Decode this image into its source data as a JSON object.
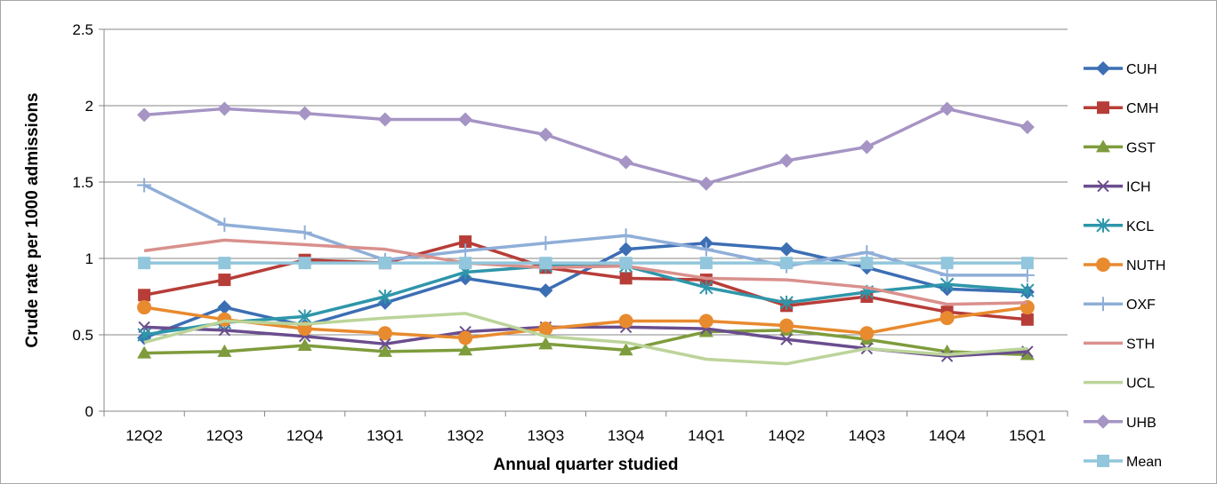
{
  "chart_data": {
    "type": "line",
    "title": "",
    "xlabel": "Annual quarter studied",
    "ylabel": "Crude rate per 1000 admissions",
    "ylim": [
      0,
      2.5
    ],
    "yticks": [
      0,
      0.5,
      1,
      1.5,
      2,
      2.5
    ],
    "ytick_labels": [
      "0",
      "0.5",
      "1",
      "1.5",
      "2",
      "2.5"
    ],
    "grid": "horizontal",
    "legend_position": "right",
    "categories": [
      "12Q2",
      "12Q3",
      "12Q4",
      "13Q1",
      "13Q2",
      "13Q3",
      "13Q4",
      "14Q1",
      "14Q2",
      "14Q3",
      "14Q4",
      "15Q1"
    ],
    "series": [
      {
        "name": "CUH",
        "color": "#3c6eb4",
        "marker": "diamond",
        "values": [
          0.48,
          0.68,
          0.56,
          0.71,
          0.87,
          0.79,
          1.06,
          1.1,
          1.06,
          0.94,
          0.8,
          0.78
        ]
      },
      {
        "name": "CMH",
        "color": "#b73d38",
        "marker": "square",
        "values": [
          0.76,
          0.86,
          0.99,
          0.97,
          1.11,
          0.94,
          0.87,
          0.86,
          0.69,
          0.75,
          0.65,
          0.6
        ]
      },
      {
        "name": "GST",
        "color": "#7e9c3c",
        "marker": "triangle",
        "values": [
          0.38,
          0.39,
          0.43,
          0.39,
          0.4,
          0.44,
          0.4,
          0.52,
          0.53,
          0.47,
          0.39,
          0.37
        ]
      },
      {
        "name": "ICH",
        "color": "#6a4d8e",
        "marker": "x",
        "values": [
          0.55,
          0.53,
          0.49,
          0.44,
          0.52,
          0.55,
          0.55,
          0.54,
          0.47,
          0.41,
          0.36,
          0.39
        ]
      },
      {
        "name": "KCL",
        "color": "#2e96aa",
        "marker": "star",
        "values": [
          0.5,
          0.58,
          0.62,
          0.75,
          0.91,
          0.95,
          0.95,
          0.81,
          0.71,
          0.78,
          0.83,
          0.79
        ]
      },
      {
        "name": "NUTH",
        "color": "#e88a2e",
        "marker": "circle",
        "values": [
          0.68,
          0.6,
          0.54,
          0.51,
          0.48,
          0.54,
          0.59,
          0.59,
          0.56,
          0.51,
          0.61,
          0.68
        ]
      },
      {
        "name": "OXF",
        "color": "#8faed8",
        "marker": "plus",
        "values": [
          1.48,
          1.22,
          1.17,
          0.99,
          1.05,
          1.1,
          1.15,
          1.06,
          0.95,
          1.04,
          0.89,
          0.89
        ]
      },
      {
        "name": "STH",
        "color": "#d9908c",
        "marker": "none",
        "values": [
          1.05,
          1.12,
          1.09,
          1.06,
          0.97,
          0.94,
          0.95,
          0.87,
          0.86,
          0.81,
          0.7,
          0.71
        ]
      },
      {
        "name": "UCL",
        "color": "#bcd49a",
        "marker": "none",
        "values": [
          0.45,
          0.59,
          0.57,
          0.61,
          0.64,
          0.49,
          0.45,
          0.34,
          0.31,
          0.41,
          0.37,
          0.41
        ]
      },
      {
        "name": "UHB",
        "color": "#a594c4",
        "marker": "diamond",
        "values": [
          1.94,
          1.98,
          1.95,
          1.91,
          1.91,
          1.81,
          1.63,
          1.49,
          1.64,
          1.73,
          1.98,
          1.86
        ]
      },
      {
        "name": "Mean",
        "color": "#92c6dc",
        "marker": "square",
        "values": [
          0.97,
          0.97,
          0.97,
          0.97,
          0.97,
          0.97,
          0.97,
          0.97,
          0.97,
          0.97,
          0.97,
          0.97
        ]
      }
    ]
  }
}
